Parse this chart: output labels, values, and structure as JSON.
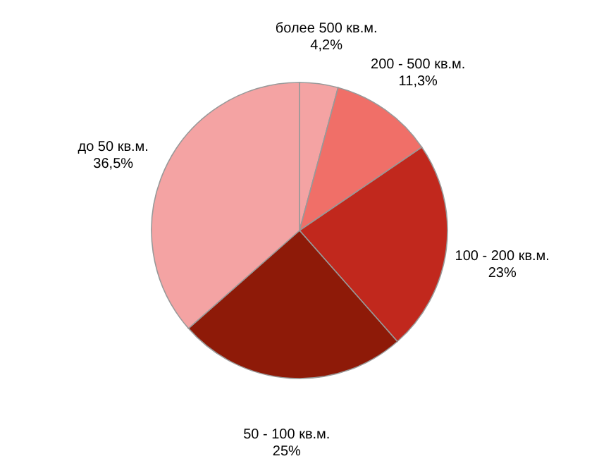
{
  "chart_data": {
    "type": "pie",
    "categories": [
      "более 500 кв.м.",
      "200 - 500 кв.м.",
      "100 - 200 кв.м.",
      "50 - 100 кв.м.",
      "до 50 кв.м."
    ],
    "values": [
      4.2,
      11.3,
      23,
      25,
      36.5
    ],
    "value_labels": [
      "4,2%",
      "11,3%",
      "23%",
      "25%",
      "36,5%"
    ],
    "colors": [
      "#f4a3a3",
      "#f06f68",
      "#c1281d",
      "#8e1a08",
      "#f4a3a3"
    ],
    "legend": false
  }
}
